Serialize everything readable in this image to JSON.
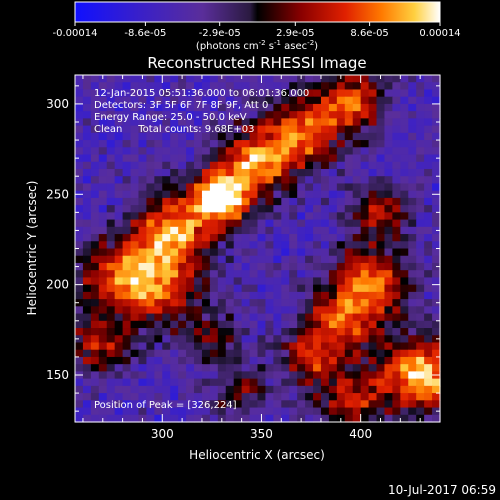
{
  "colorbar": {
    "tick_labels": [
      "-0.00014",
      "-8.6e-05",
      "-2.9e-05",
      "2.9e-05",
      "8.6e-05",
      "0.00014"
    ],
    "tick_values": [
      -0.00014,
      -8.6e-05,
      -2.9e-05,
      2.9e-05,
      8.6e-05,
      0.00014
    ],
    "units_prefix": "(photons cm",
    "units_exp1": "-2",
    "units_mid": " s",
    "units_exp2": "-1",
    "units_mid2": " asec",
    "units_exp3": "-2",
    "units_suffix": ")",
    "range": [
      -0.00014,
      0.00014
    ]
  },
  "chart_data": {
    "type": "heatmap",
    "title": "Reconstructed RHESSI Image",
    "xlabel": "Heliocentric X (arcsec)",
    "ylabel": "Heliocentric Y (arcsec)",
    "xlim": [
      256,
      440
    ],
    "ylim": [
      124,
      316
    ],
    "x_ticks": [
      300,
      350,
      400
    ],
    "y_ticks": [
      150,
      200,
      250,
      300
    ],
    "annotations": [
      "12-Jan-2015 05:51:36.000 to 06:01:36.000",
      "Detectors: 3F 5F 6F 7F 8F 9F, Att 0",
      "Energy Range: 25.0 - 50.0 keV",
      "Clean     Total counts: 9.68E+03"
    ],
    "peak_label": "Position of Peak = [326,224]",
    "peak": [
      326,
      224
    ],
    "sources": [
      {
        "x": 330,
        "y": 248,
        "amp": 1.0,
        "sigma": 10
      },
      {
        "x": 348,
        "y": 268,
        "amp": 0.75,
        "sigma": 12
      },
      {
        "x": 305,
        "y": 228,
        "amp": 0.7,
        "sigma": 14
      },
      {
        "x": 372,
        "y": 282,
        "amp": 0.6,
        "sigma": 12
      },
      {
        "x": 395,
        "y": 300,
        "amp": 0.55,
        "sigma": 12
      },
      {
        "x": 280,
        "y": 205,
        "amp": 0.55,
        "sigma": 13
      },
      {
        "x": 300,
        "y": 195,
        "amp": 0.55,
        "sigma": 14
      },
      {
        "x": 405,
        "y": 200,
        "amp": 0.75,
        "sigma": 14
      },
      {
        "x": 390,
        "y": 180,
        "amp": 0.6,
        "sigma": 12
      },
      {
        "x": 375,
        "y": 160,
        "amp": 0.55,
        "sigma": 12
      },
      {
        "x": 430,
        "y": 150,
        "amp": 1.0,
        "sigma": 14
      },
      {
        "x": 395,
        "y": 135,
        "amp": 0.6,
        "sigma": 12
      },
      {
        "x": 270,
        "y": 165,
        "amp": 0.5,
        "sigma": 11
      },
      {
        "x": 325,
        "y": 170,
        "amp": 0.45,
        "sigma": 10
      },
      {
        "x": 410,
        "y": 240,
        "amp": 0.55,
        "sigma": 11
      },
      {
        "x": 340,
        "y": 140,
        "amp": 0.4,
        "sigma": 10
      }
    ],
    "colormap": "red-temperature with blue negatives",
    "grid": false
  },
  "footer": {
    "date": "10-Jul-2017 06:59"
  }
}
